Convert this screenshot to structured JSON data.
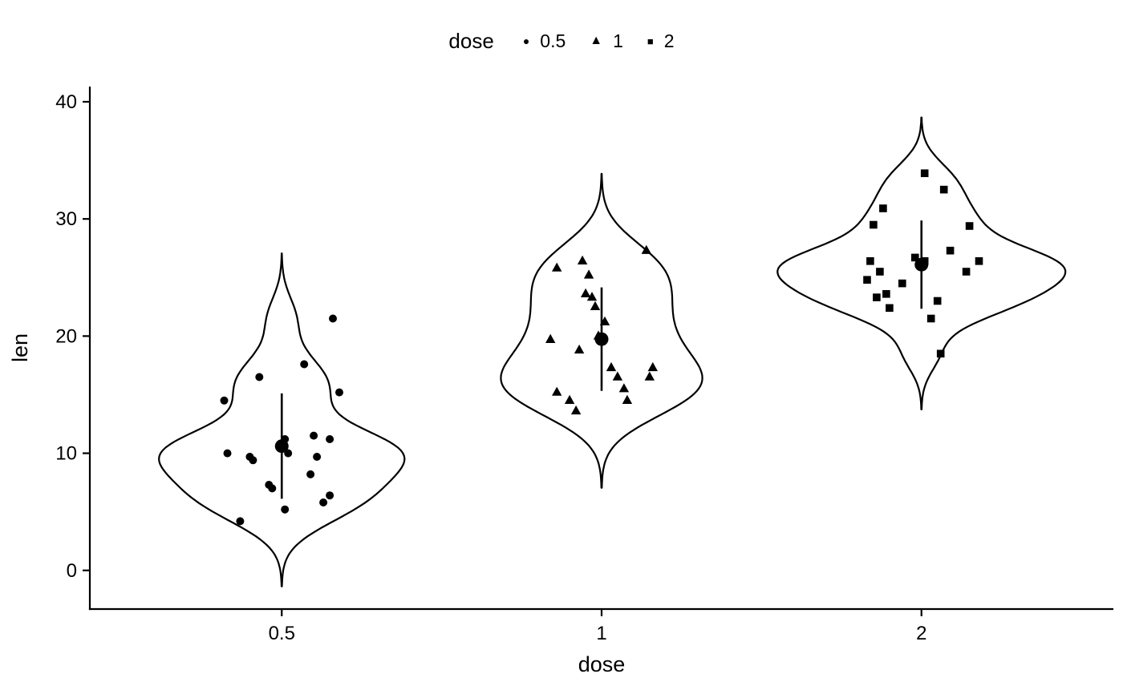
{
  "chart_data": {
    "type": "violin",
    "title": "",
    "xlabel": "dose",
    "ylabel": "len",
    "x_categories": [
      "0.5",
      "1",
      "2"
    ],
    "y_ticks": [
      "0",
      "10",
      "20",
      "30",
      "40"
    ],
    "y_tick_values": [
      0,
      10,
      20,
      30,
      40
    ],
    "ylim": [
      -3.3,
      41.3
    ],
    "grid": "off",
    "background": "#ffffff",
    "stroke_color": "#000000",
    "summary_stat": "mean point with mean±sd bar",
    "legend": {
      "title": "dose",
      "position": "top",
      "entries": [
        {
          "label": "0.5",
          "shape": "circle"
        },
        {
          "label": "1",
          "shape": "triangle"
        },
        {
          "label": "2",
          "shape": "square"
        }
      ]
    },
    "groups": [
      {
        "dose": "0.5",
        "shape": "circle",
        "len_values": [
          21.5,
          17.6,
          16.5,
          15.2,
          14.5,
          11.5,
          11.2,
          11.2,
          10.0,
          10.0,
          9.7,
          9.7,
          9.4,
          8.2,
          7.3,
          7.0,
          6.4,
          5.8,
          5.2,
          4.2
        ],
        "jitter_offsets": [
          0.16,
          0.07,
          -0.07,
          0.18,
          -0.18,
          0.1,
          0.01,
          0.15,
          -0.17,
          0.02,
          -0.1,
          0.11,
          -0.09,
          0.09,
          -0.04,
          -0.03,
          0.15,
          0.13,
          0.01,
          -0.13
        ],
        "mean": 10.61,
        "sd": 4.5
      },
      {
        "dose": "1",
        "shape": "triangle",
        "len_values": [
          27.3,
          26.4,
          25.8,
          25.2,
          23.6,
          23.3,
          22.5,
          21.2,
          20.0,
          19.7,
          18.8,
          17.3,
          17.3,
          16.5,
          16.5,
          15.5,
          15.2,
          14.5,
          14.5,
          13.6
        ],
        "jitter_offsets": [
          0.14,
          -0.06,
          -0.14,
          -0.04,
          -0.05,
          -0.03,
          -0.02,
          0.01,
          -0.01,
          -0.16,
          -0.07,
          0.16,
          0.03,
          0.05,
          0.15,
          0.07,
          -0.14,
          -0.1,
          0.08,
          -0.08
        ],
        "mean": 19.74,
        "sd": 4.42
      },
      {
        "dose": "2",
        "shape": "square",
        "len_values": [
          33.9,
          32.5,
          30.9,
          29.5,
          29.4,
          27.3,
          26.7,
          26.4,
          26.4,
          26.4,
          25.5,
          25.5,
          24.8,
          24.5,
          23.6,
          23.3,
          23.0,
          22.4,
          21.5,
          18.5
        ],
        "jitter_offsets": [
          0.01,
          0.07,
          -0.12,
          -0.15,
          0.15,
          0.09,
          -0.02,
          -0.16,
          0.01,
          0.18,
          -0.13,
          0.14,
          -0.17,
          -0.06,
          -0.11,
          -0.14,
          0.05,
          -0.1,
          0.03,
          0.06
        ],
        "mean": 26.1,
        "sd": 3.77
      }
    ]
  }
}
